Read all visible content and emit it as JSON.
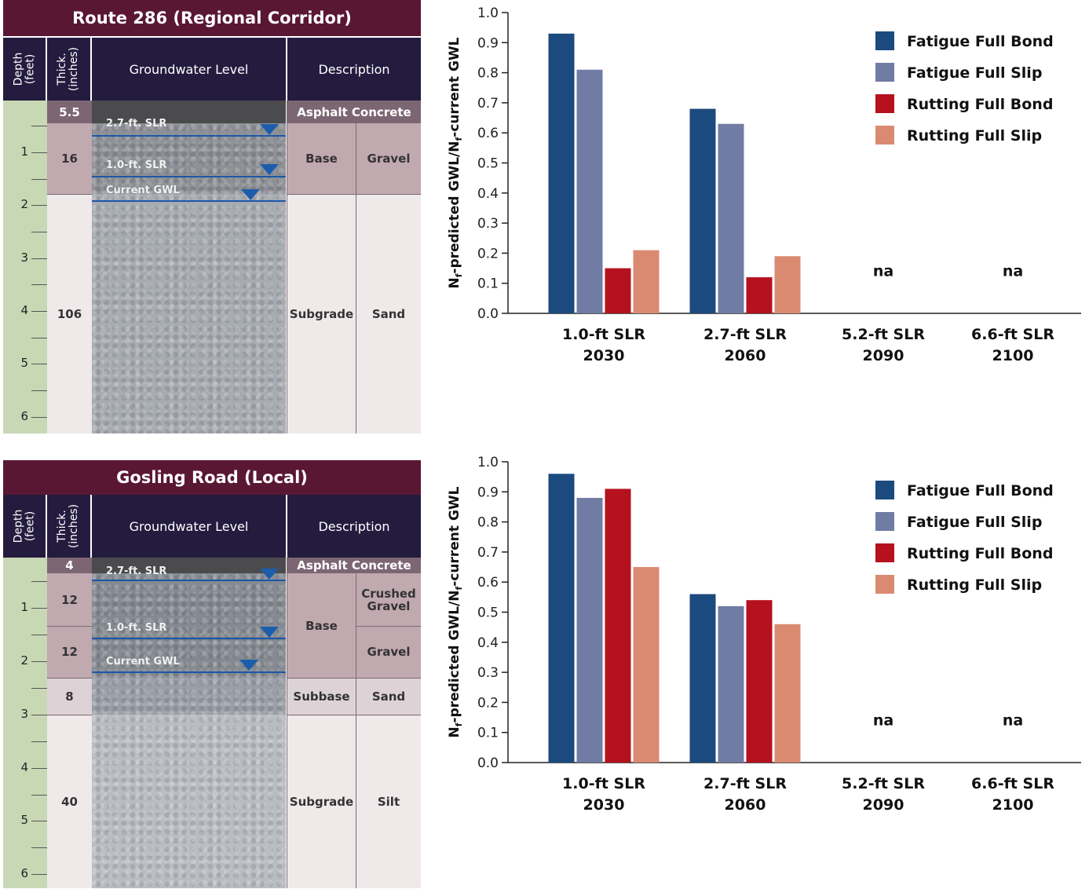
{
  "colors": {
    "title_bg": "#5a1734",
    "header_bg": "#241c3f",
    "depth_col": "#c8d8b5",
    "fatigue_full_bond": "#1b4a7e",
    "fatigue_full_slip": "#707ca3",
    "rutting_full_bond": "#b5111f",
    "rutting_full_slip": "#db8a72",
    "gwl_line": "#1d57a8"
  },
  "route286": {
    "title": "Route 286 (Regional Corridor)",
    "headers": {
      "depth": "Depth\n(feet)",
      "thick": "Thick.\n(inches)",
      "gwl": "Groundwater Level",
      "desc": "Description"
    },
    "depth_ticks": [
      "1",
      "2",
      "3",
      "4",
      "5",
      "6"
    ],
    "layers": {
      "asphalt_thick": "5.5",
      "asphalt_desc": "Asphalt Concrete",
      "base_thick": "16",
      "base_desc": "Base",
      "base_material": "Gravel",
      "subgrade_thick": "106",
      "subgrade_desc": "Subgrade",
      "subgrade_material": "Sand"
    },
    "gwl_labels": {
      "slr27": "2.7-ft. SLR",
      "slr10": "1.0-ft. SLR",
      "current": "Current GWL"
    }
  },
  "gosling": {
    "title": "Gosling Road (Local)",
    "headers": {
      "depth": "Depth\n(feet)",
      "thick": "Thick.\n(inches)",
      "gwl": "Groundwater Level",
      "desc": "Description"
    },
    "depth_ticks": [
      "1",
      "2",
      "3",
      "4",
      "5",
      "6"
    ],
    "layers": {
      "asphalt_thick": "4",
      "asphalt_desc": "Asphalt Concrete",
      "base1_thick": "12",
      "base_desc": "Base",
      "base1_material": "Crushed\nGravel",
      "base2_thick": "12",
      "base2_material": "Gravel",
      "subbase_thick": "8",
      "subbase_desc": "Subbase",
      "subbase_material": "Sand",
      "subgrade_thick": "40",
      "subgrade_desc": "Subgrade",
      "subgrade_material": "Silt"
    },
    "gwl_labels": {
      "slr27": "2.7-ft. SLR",
      "slr10": "1.0-ft. SLR",
      "current": "Current GWL"
    }
  },
  "chart_data": [
    {
      "type": "bar",
      "ylabel_main": "N",
      "ylabel_sub1": "f",
      "ylabel_mid": "-predicted GWL/N",
      "ylabel_sub2": "f",
      "ylabel_end": "-current GWL",
      "ylim": [
        0,
        1.0
      ],
      "yticks": [
        "0.0",
        "0.1",
        "0.2",
        "0.3",
        "0.4",
        "0.5",
        "0.6",
        "0.7",
        "0.8",
        "0.9",
        "1.0"
      ],
      "categories": [
        [
          "1.0-ft SLR",
          "2030"
        ],
        [
          "2.7-ft SLR",
          "2060"
        ],
        [
          "5.2-ft SLR",
          "2090"
        ],
        [
          "6.6-ft SLR",
          "2100"
        ]
      ],
      "na_label": "na",
      "legend_position": "top-right",
      "series": [
        {
          "name": "Fatigue Full Bond",
          "values": [
            0.93,
            0.68,
            null,
            null
          ]
        },
        {
          "name": "Fatigue Full Slip",
          "values": [
            0.81,
            0.63,
            null,
            null
          ]
        },
        {
          "name": "Rutting Full Bond",
          "values": [
            0.15,
            0.12,
            null,
            null
          ]
        },
        {
          "name": "Rutting Full Slip",
          "values": [
            0.21,
            0.19,
            null,
            null
          ]
        }
      ]
    },
    {
      "type": "bar",
      "ylabel_main": "N",
      "ylabel_sub1": "f",
      "ylabel_mid": "-predicted GWL/N",
      "ylabel_sub2": "f",
      "ylabel_end": "-current GWL",
      "ylim": [
        0,
        1.0
      ],
      "yticks": [
        "0.0",
        "0.1",
        "0.2",
        "0.3",
        "0.4",
        "0.5",
        "0.6",
        "0.7",
        "0.8",
        "0.9",
        "1.0"
      ],
      "categories": [
        [
          "1.0-ft SLR",
          "2030"
        ],
        [
          "2.7-ft SLR",
          "2060"
        ],
        [
          "5.2-ft SLR",
          "2090"
        ],
        [
          "6.6-ft SLR",
          "2100"
        ]
      ],
      "na_label": "na",
      "legend_position": "top-right",
      "series": [
        {
          "name": "Fatigue Full Bond",
          "values": [
            0.96,
            0.56,
            null,
            null
          ]
        },
        {
          "name": "Fatigue Full Slip",
          "values": [
            0.88,
            0.52,
            null,
            null
          ]
        },
        {
          "name": "Rutting Full Bond",
          "values": [
            0.91,
            0.54,
            null,
            null
          ]
        },
        {
          "name": "Rutting Full Slip",
          "values": [
            0.65,
            0.46,
            null,
            null
          ]
        }
      ]
    }
  ]
}
